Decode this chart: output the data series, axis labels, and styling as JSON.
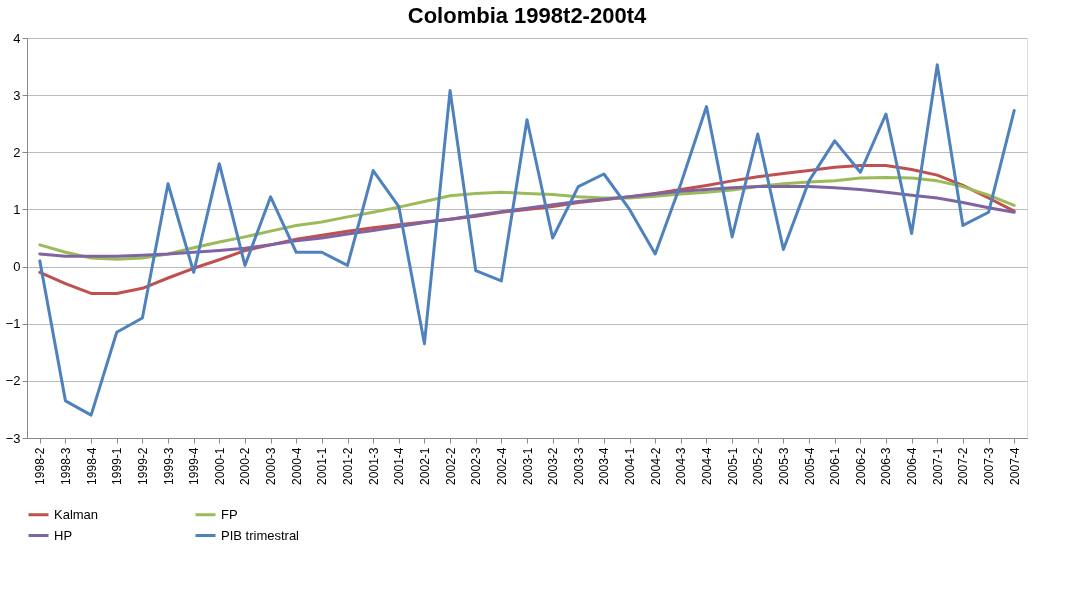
{
  "chart_data": {
    "type": "line",
    "title": "Colombia 1998t2-200t4",
    "categories": [
      "1998-2",
      "1998-3",
      "1998-4",
      "1999-1",
      "1999-2",
      "1999-3",
      "1999-4",
      "2000-1",
      "2000-2",
      "2000-3",
      "2000-4",
      "2001-1",
      "2001-2",
      "2001-3",
      "2001-4",
      "2002-1",
      "2002-2",
      "2002-3",
      "2002-4",
      "2003-1",
      "2003-2",
      "2003-3",
      "2003-4",
      "2004-1",
      "2004-2",
      "2004-3",
      "2004-4",
      "2005-1",
      "2005-2",
      "2005-3",
      "2005-4",
      "2006-1",
      "2006-2",
      "2006-3",
      "2006-4",
      "2007-1",
      "2007-2",
      "2007-3",
      "2007-4"
    ],
    "series": [
      {
        "name": "Kalman",
        "color": "#c0504d",
        "values": [
          -0.1,
          -0.3,
          -0.47,
          -0.47,
          -0.38,
          -0.2,
          -0.03,
          0.12,
          0.28,
          0.38,
          0.48,
          0.55,
          0.62,
          0.68,
          0.73,
          0.78,
          0.83,
          0.88,
          0.95,
          1.0,
          1.05,
          1.12,
          1.17,
          1.22,
          1.28,
          1.35,
          1.42,
          1.5,
          1.57,
          1.63,
          1.68,
          1.74,
          1.77,
          1.77,
          1.7,
          1.6,
          1.42,
          1.2,
          0.97
        ]
      },
      {
        "name": "FP",
        "color": "#9bbb59",
        "values": [
          0.38,
          0.25,
          0.15,
          0.13,
          0.15,
          0.22,
          0.33,
          0.43,
          0.52,
          0.62,
          0.72,
          0.78,
          0.87,
          0.95,
          1.04,
          1.14,
          1.24,
          1.28,
          1.3,
          1.28,
          1.26,
          1.22,
          1.2,
          1.2,
          1.23,
          1.27,
          1.3,
          1.34,
          1.4,
          1.45,
          1.48,
          1.5,
          1.55,
          1.56,
          1.55,
          1.5,
          1.4,
          1.25,
          1.07
        ]
      },
      {
        "name": "HP",
        "color": "#8064a2",
        "values": [
          0.22,
          0.18,
          0.18,
          0.18,
          0.2,
          0.22,
          0.25,
          0.28,
          0.32,
          0.38,
          0.45,
          0.5,
          0.57,
          0.63,
          0.7,
          0.77,
          0.83,
          0.9,
          0.96,
          1.02,
          1.08,
          1.14,
          1.18,
          1.22,
          1.27,
          1.32,
          1.35,
          1.38,
          1.4,
          1.4,
          1.4,
          1.38,
          1.35,
          1.3,
          1.25,
          1.2,
          1.12,
          1.03,
          0.95
        ]
      },
      {
        "name": "PIB trimestral",
        "color": "#4f81bd",
        "values": [
          0.1,
          -2.35,
          -2.6,
          -1.15,
          -0.9,
          1.45,
          -0.1,
          1.8,
          0.02,
          1.22,
          0.25,
          0.25,
          0.02,
          1.68,
          1.05,
          -1.35,
          3.08,
          -0.07,
          -0.25,
          2.57,
          0.5,
          1.4,
          1.62,
          1.0,
          0.22,
          1.45,
          2.8,
          0.52,
          2.32,
          0.3,
          1.5,
          2.2,
          1.65,
          2.67,
          0.58,
          3.53,
          0.72,
          0.95,
          2.73
        ]
      }
    ],
    "ylim": [
      -3,
      4
    ],
    "yticks": [
      -3,
      -2,
      -1,
      0,
      1,
      2,
      3,
      4
    ],
    "grid": "y",
    "legend": "bottom",
    "marker": "none",
    "line_style": "solid"
  }
}
